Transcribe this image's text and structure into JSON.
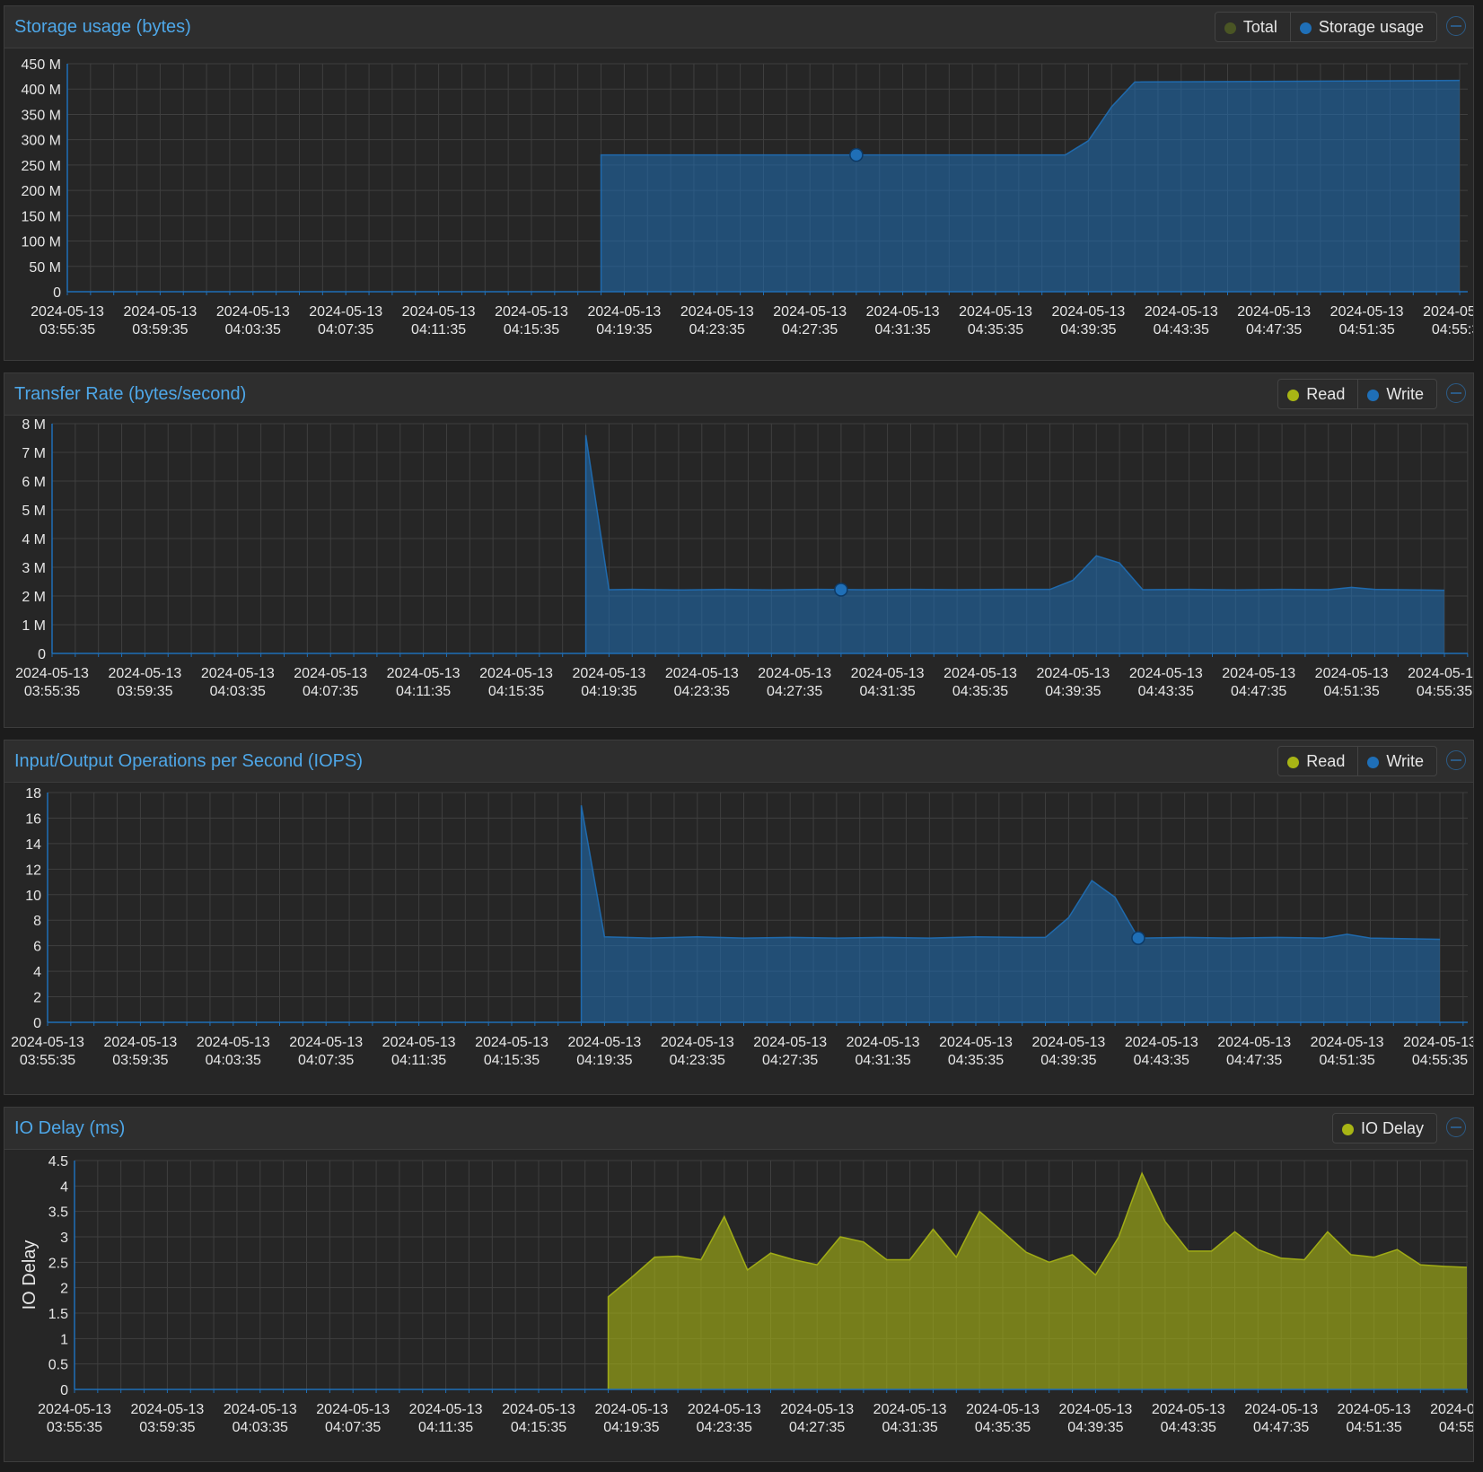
{
  "colors": {
    "write": "#1f6fb7",
    "read": "#a8b515",
    "total": "#4a5524",
    "title": "#4ea7e8"
  },
  "x_ticks": [
    [
      "2024-05-13",
      "03:55:35"
    ],
    [
      "2024-05-13",
      "03:59:35"
    ],
    [
      "2024-05-13",
      "04:03:35"
    ],
    [
      "2024-05-13",
      "04:07:35"
    ],
    [
      "2024-05-13",
      "04:11:35"
    ],
    [
      "2024-05-13",
      "04:15:35"
    ],
    [
      "2024-05-13",
      "04:19:35"
    ],
    [
      "2024-05-13",
      "04:23:35"
    ],
    [
      "2024-05-13",
      "04:27:35"
    ],
    [
      "2024-05-13",
      "04:31:35"
    ],
    [
      "2024-05-13",
      "04:35:35"
    ],
    [
      "2024-05-13",
      "04:39:35"
    ],
    [
      "2024-05-13",
      "04:43:35"
    ],
    [
      "2024-05-13",
      "04:47:35"
    ],
    [
      "2024-05-13",
      "04:51:35"
    ],
    [
      "2024-05-13",
      "04:55:35"
    ]
  ],
  "panels": [
    {
      "title": "Storage usage (bytes)",
      "legend": [
        {
          "label": "Total",
          "color": "#4a5524"
        },
        {
          "label": "Storage usage",
          "color": "#1f6fb7"
        }
      ],
      "chart_data": {
        "type": "area",
        "y_ticks": [
          "0",
          "50 M",
          "100 M",
          "150 M",
          "200 M",
          "250 M",
          "300 M",
          "350 M",
          "400 M",
          "450 M"
        ],
        "ylim": [
          0,
          450000000
        ],
        "ylabel": "",
        "series": [
          {
            "name": "Storage usage",
            "color": "#1f6fb7",
            "points": [
              [
                "04:18:35",
                0
              ],
              [
                "04:18:35",
                270000000
              ],
              [
                "04:38:35",
                270000000
              ],
              [
                "04:39:35",
                298000000
              ],
              [
                "04:40:35",
                365000000
              ],
              [
                "04:41:35",
                414000000
              ],
              [
                "04:55:35",
                417000000
              ]
            ],
            "marker": [
              "04:29:35",
              270000000
            ]
          }
        ]
      }
    },
    {
      "title": "Transfer Rate (bytes/second)",
      "legend": [
        {
          "label": "Read",
          "color": "#a8b515"
        },
        {
          "label": "Write",
          "color": "#1f6fb7"
        }
      ],
      "chart_data": {
        "type": "area",
        "y_ticks": [
          "0",
          "1 M",
          "2 M",
          "3 M",
          "4 M",
          "5 M",
          "6 M",
          "7 M",
          "8 M"
        ],
        "ylim": [
          0,
          8000000
        ],
        "ylabel": "",
        "series": [
          {
            "name": "Write",
            "color": "#1f6fb7",
            "points": [
              [
                "04:18:35",
                0
              ],
              [
                "04:18:35",
                7600000
              ],
              [
                "04:19:35",
                2220000
              ],
              [
                "04:20:35",
                2230000
              ],
              [
                "04:22:35",
                2210000
              ],
              [
                "04:24:35",
                2230000
              ],
              [
                "04:26:35",
                2210000
              ],
              [
                "04:28:35",
                2230000
              ],
              [
                "04:30:35",
                2220000
              ],
              [
                "04:32:35",
                2230000
              ],
              [
                "04:34:35",
                2220000
              ],
              [
                "04:36:35",
                2230000
              ],
              [
                "04:38:35",
                2230000
              ],
              [
                "04:39:35",
                2550000
              ],
              [
                "04:40:35",
                3400000
              ],
              [
                "04:41:35",
                3150000
              ],
              [
                "04:42:35",
                2220000
              ],
              [
                "04:44:35",
                2230000
              ],
              [
                "04:46:35",
                2210000
              ],
              [
                "04:48:35",
                2230000
              ],
              [
                "04:50:35",
                2220000
              ],
              [
                "04:51:35",
                2300000
              ],
              [
                "04:52:35",
                2230000
              ],
              [
                "04:55:35",
                2200000
              ]
            ],
            "marker": [
              "04:29:35",
              2220000
            ]
          }
        ]
      }
    },
    {
      "title": "Input/Output Operations per Second (IOPS)",
      "legend": [
        {
          "label": "Read",
          "color": "#a8b515"
        },
        {
          "label": "Write",
          "color": "#1f6fb7"
        }
      ],
      "chart_data": {
        "type": "area",
        "y_ticks": [
          "0",
          "2",
          "4",
          "6",
          "8",
          "10",
          "12",
          "14",
          "16",
          "18"
        ],
        "ylim": [
          0,
          18
        ],
        "ylabel": "",
        "series": [
          {
            "name": "Write",
            "color": "#1f6fb7",
            "points": [
              [
                "04:18:35",
                0
              ],
              [
                "04:18:35",
                17
              ],
              [
                "04:19:35",
                6.7
              ],
              [
                "04:21:35",
                6.6
              ],
              [
                "04:23:35",
                6.7
              ],
              [
                "04:25:35",
                6.6
              ],
              [
                "04:27:35",
                6.65
              ],
              [
                "04:29:35",
                6.6
              ],
              [
                "04:31:35",
                6.65
              ],
              [
                "04:33:35",
                6.6
              ],
              [
                "04:35:35",
                6.7
              ],
              [
                "04:37:35",
                6.65
              ],
              [
                "04:38:35",
                6.65
              ],
              [
                "04:39:35",
                8.2
              ],
              [
                "04:40:35",
                11.1
              ],
              [
                "04:41:35",
                9.8
              ],
              [
                "04:42:35",
                6.6
              ],
              [
                "04:44:35",
                6.65
              ],
              [
                "04:46:35",
                6.6
              ],
              [
                "04:48:35",
                6.65
              ],
              [
                "04:50:35",
                6.6
              ],
              [
                "04:51:35",
                6.9
              ],
              [
                "04:52:35",
                6.6
              ],
              [
                "04:55:35",
                6.5
              ]
            ],
            "marker": [
              "04:42:35",
              6.6
            ]
          }
        ]
      }
    },
    {
      "title": "IO Delay (ms)",
      "legend": [
        {
          "label": "IO Delay",
          "color": "#a8b515"
        }
      ],
      "chart_data": {
        "type": "area",
        "y_ticks": [
          "0",
          "0.5",
          "1",
          "1.5",
          "2",
          "2.5",
          "3",
          "3.5",
          "4",
          "4.5"
        ],
        "ylim": [
          0,
          4.5
        ],
        "ylabel": "IO Delay",
        "series": [
          {
            "name": "IO Delay",
            "color": "#a8b515",
            "points": [
              [
                "04:18:35",
                0
              ],
              [
                "04:18:35",
                1.82
              ],
              [
                "04:19:35",
                2.2
              ],
              [
                "04:20:35",
                2.6
              ],
              [
                "04:21:35",
                2.62
              ],
              [
                "04:22:35",
                2.55
              ],
              [
                "04:23:35",
                3.4
              ],
              [
                "04:24:35",
                2.35
              ],
              [
                "04:25:35",
                2.68
              ],
              [
                "04:26:35",
                2.55
              ],
              [
                "04:27:35",
                2.45
              ],
              [
                "04:28:35",
                3.0
              ],
              [
                "04:29:35",
                2.9
              ],
              [
                "04:30:35",
                2.55
              ],
              [
                "04:31:35",
                2.55
              ],
              [
                "04:32:35",
                3.15
              ],
              [
                "04:33:35",
                2.6
              ],
              [
                "04:34:35",
                3.5
              ],
              [
                "04:35:35",
                3.1
              ],
              [
                "04:36:35",
                2.7
              ],
              [
                "04:37:35",
                2.5
              ],
              [
                "04:38:35",
                2.65
              ],
              [
                "04:39:35",
                2.25
              ],
              [
                "04:40:35",
                3.0
              ],
              [
                "04:41:35",
                4.25
              ],
              [
                "04:42:35",
                3.3
              ],
              [
                "04:43:35",
                2.72
              ],
              [
                "04:44:35",
                2.72
              ],
              [
                "04:45:35",
                3.1
              ],
              [
                "04:46:35",
                2.75
              ],
              [
                "04:47:35",
                2.58
              ],
              [
                "04:48:35",
                2.55
              ],
              [
                "04:49:35",
                3.1
              ],
              [
                "04:50:35",
                2.65
              ],
              [
                "04:51:35",
                2.6
              ],
              [
                "04:52:35",
                2.75
              ],
              [
                "04:53:35",
                2.45
              ],
              [
                "04:54:35",
                2.42
              ],
              [
                "04:55:35",
                2.4
              ]
            ],
            "marker": null
          }
        ]
      }
    }
  ]
}
